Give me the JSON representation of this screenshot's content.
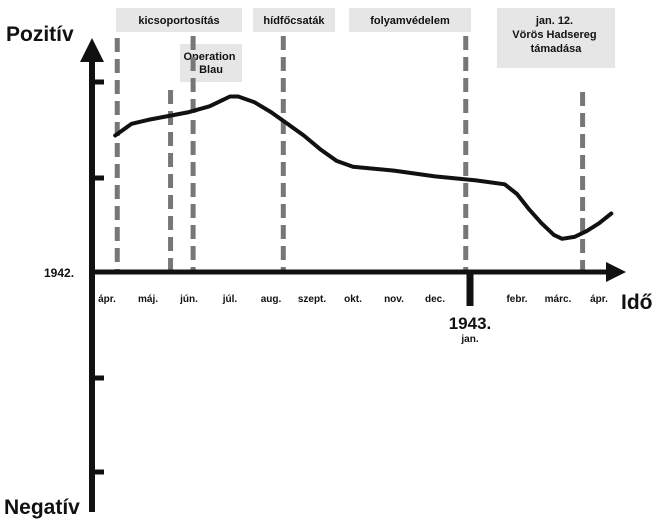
{
  "chart_data": {
    "type": "line",
    "title": "",
    "ylabel_top": "Pozitív",
    "ylabel_bottom": "Negatív",
    "xlabel": "Idő",
    "year_start": "1942.",
    "year_mid": "1943.",
    "year_mid_sub": "jan.",
    "months": [
      "ápr.",
      "máj.",
      "jún.",
      "júl.",
      "aug.",
      "szept.",
      "okt.",
      "nov.",
      "dec.",
      "jan.",
      "febr.",
      "márc.",
      "ápr."
    ],
    "xlim": [
      0,
      12.5
    ],
    "ylim": [
      -1,
      1
    ],
    "series": [
      {
        "x": [
          0.2,
          0.6,
          1.0,
          1.5,
          2.0,
          2.5,
          2.8,
          3.0,
          3.2,
          3.6,
          4.0,
          4.4,
          4.8,
          5.2,
          5.6,
          6.0,
          7.0,
          8.0,
          9.0,
          9.7,
          10.0,
          10.3,
          10.6,
          10.9,
          11.1,
          11.4,
          11.7,
          12.0,
          12.3
        ],
        "y": [
          0.7,
          0.76,
          0.78,
          0.8,
          0.82,
          0.85,
          0.88,
          0.9,
          0.9,
          0.87,
          0.82,
          0.76,
          0.7,
          0.63,
          0.57,
          0.54,
          0.52,
          0.49,
          0.47,
          0.45,
          0.4,
          0.32,
          0.25,
          0.19,
          0.17,
          0.18,
          0.21,
          0.25,
          0.3
        ]
      }
    ],
    "dividers": [
      0.25,
      1.55,
      2.1,
      4.3,
      8.75,
      11.6
    ],
    "phases": [
      {
        "label": "kicsoportosítás",
        "center": 1.25
      },
      {
        "label": "Operation Blau",
        "center": 2.05
      },
      {
        "label": "hídfőcsaták",
        "center": 3.3
      },
      {
        "label": "folyamvédelem",
        "center": 6.4
      },
      {
        "label": "jan. 12. Vörös Hadsereg támadása",
        "center": 10.25
      }
    ]
  }
}
